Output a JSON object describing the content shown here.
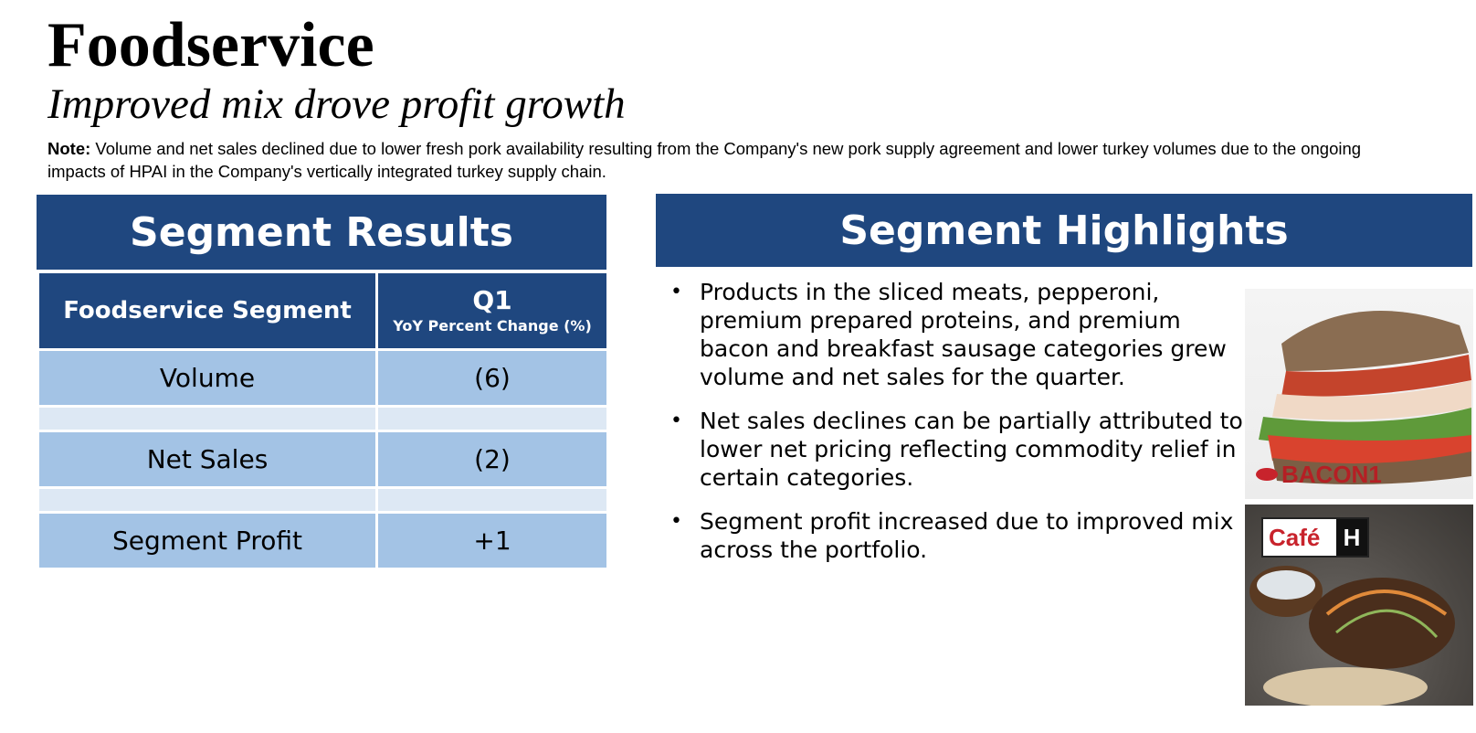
{
  "header": {
    "title": "Foodservice",
    "subtitle": "Improved mix drove profit growth",
    "note_label": "Note:",
    "note_text": " Volume and net sales declined due to lower fresh pork availability resulting from the Company's new pork supply agreement and lower turkey volumes due to the ongoing impacts of HPAI in the Company's vertically integrated turkey supply chain."
  },
  "segment_results": {
    "heading": "Segment Results",
    "col_segment": "Foodservice Segment",
    "col_period": "Q1",
    "col_period_sub": "YoY Percent Change (%)",
    "rows": [
      {
        "label": "Volume",
        "value": "(6)"
      },
      {
        "label": "Net Sales",
        "value": "(2)"
      },
      {
        "label": "Segment Profit",
        "value": "+1"
      }
    ]
  },
  "segment_highlights": {
    "heading": "Segment Highlights",
    "bullets": [
      "Products in the sliced meats, pepperoni, premium prepared proteins, and premium bacon and breakfast sausage categories grew volume and net sales for the quarter.",
      "Net sales declines can be partially attributed to lower net pricing reflecting commodity relief in certain categories.",
      "Segment profit increased due to improved mix across the portfolio."
    ]
  },
  "images": {
    "photo1_logo": "BACON1",
    "photo2_logo_left": "Café",
    "photo2_logo_right": "H"
  },
  "colors": {
    "header_blue": "#1f477f",
    "row_blue": "#a3c3e5",
    "spacer_blue": "#dde8f4"
  }
}
